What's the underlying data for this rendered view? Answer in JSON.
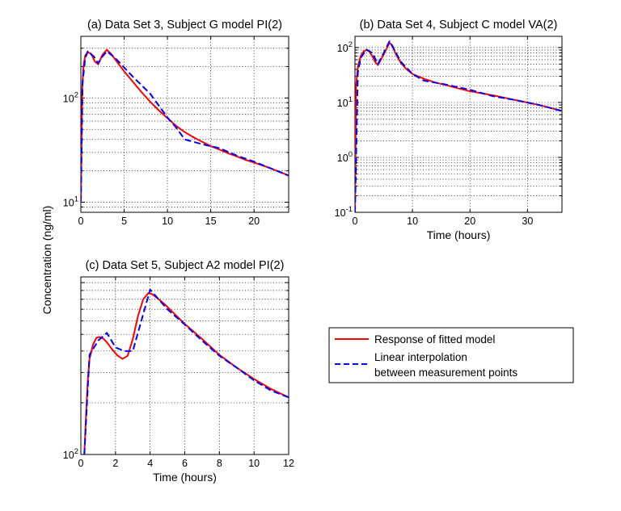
{
  "figure": {
    "ylabel": "Concentration (ng/ml)"
  },
  "legend": {
    "placement": "right",
    "entries": [
      {
        "label": "Response of fitted model",
        "color": "#ff0000",
        "style": "solid"
      },
      {
        "label": "Linear interpolation",
        "label2": "between measurement points",
        "color": "#0000ff",
        "style": "dashed"
      }
    ]
  },
  "chart_data": [
    {
      "type": "line",
      "title": "(a) Data Set 3, Subject G model PI(2)",
      "xlabel": "",
      "ylabel": "",
      "xlim": [
        0,
        24
      ],
      "ylim": [
        8,
        390
      ],
      "yscale": "log",
      "grid": true,
      "xticks": [
        0,
        5,
        10,
        15,
        20
      ],
      "yticks": [
        {
          "v": 10,
          "mant": "10",
          "exp": "1"
        },
        {
          "v": 100,
          "mant": "10",
          "exp": "2"
        }
      ],
      "series": [
        {
          "name": "Response of fitted model",
          "color": "#ff0000",
          "x": [
            0,
            0.15,
            0.3,
            0.5,
            0.8,
            1.2,
            1.6,
            2.0,
            2.5,
            3.0,
            3.5,
            4.0,
            5.0,
            6.0,
            7.0,
            8.0,
            9.0,
            10.0,
            11.0,
            12.0,
            13.0,
            14.0,
            15.0,
            16.0,
            17.0,
            18.0,
            19.0,
            20.0,
            21.0,
            22.0,
            23.0,
            24.0
          ],
          "y": [
            10,
            120,
            200,
            255,
            275,
            265,
            225,
            210,
            260,
            290,
            265,
            232,
            180,
            143,
            114,
            92,
            76,
            64,
            54,
            47,
            42,
            38,
            34.5,
            32,
            29.5,
            27.5,
            25.5,
            24,
            22.5,
            21,
            19.5,
            18
          ]
        },
        {
          "name": "Linear interpolation between measurement points",
          "color": "#0000ff",
          "x": [
            0,
            0.2,
            0.5,
            0.8,
            1.0,
            1.5,
            2.0,
            2.5,
            3.0,
            4.0,
            6.0,
            8.0,
            10.0,
            11.0,
            12.0,
            14.0,
            16.0,
            18.0,
            20.0,
            22.0,
            24.0
          ],
          "y": [
            10,
            140,
            240,
            280,
            270,
            250,
            215,
            250,
            280,
            240,
            160,
            110,
            65,
            52,
            40,
            36,
            33,
            28,
            24.5,
            21,
            18
          ]
        }
      ]
    },
    {
      "type": "line",
      "title": "(b) Data Set 4, Subject C model VA(2)",
      "xlabel": "Time (hours)",
      "ylabel": "",
      "xlim": [
        0,
        36
      ],
      "ylim": [
        0.1,
        160
      ],
      "yscale": "log",
      "grid": true,
      "xticks": [
        0,
        10,
        20,
        30
      ],
      "yticks": [
        {
          "v": 0.1,
          "mant": "10",
          "exp": "-1"
        },
        {
          "v": 1,
          "mant": "10",
          "exp": "0"
        },
        {
          "v": 10,
          "mant": "10",
          "exp": "1"
        },
        {
          "v": 100,
          "mant": "10",
          "exp": "2"
        }
      ],
      "series": [
        {
          "name": "Response of fitted model",
          "color": "#ff0000",
          "x": [
            0,
            0.2,
            0.5,
            1.0,
            1.5,
            2.0,
            2.5,
            3.0,
            3.5,
            4.0,
            5.0,
            6.0,
            6.5,
            7.0,
            8.0,
            9.0,
            10.0,
            12.0,
            14.0,
            16.0,
            18.0,
            20.0,
            24.0,
            28.0,
            32.0,
            36.0
          ],
          "y": [
            0.1,
            20,
            45,
            70,
            85,
            90,
            85,
            70,
            55,
            48,
            75,
            122,
            110,
            80,
            52,
            40,
            33,
            27,
            23,
            20.5,
            18,
            16,
            13.5,
            11,
            9,
            7
          ]
        },
        {
          "name": "Linear interpolation between measurement points",
          "color": "#0000ff",
          "x": [
            0,
            0.5,
            1.0,
            2.0,
            3.0,
            4.0,
            5.0,
            6.0,
            7.0,
            8.0,
            10.0,
            12.0,
            16.0,
            20.0,
            24.0,
            28.0,
            32.0,
            36.0
          ],
          "y": [
            0.1,
            35,
            65,
            92,
            80,
            50,
            80,
            130,
            85,
            55,
            33,
            25,
            21,
            17,
            13,
            11,
            9,
            7
          ]
        }
      ]
    },
    {
      "type": "line",
      "title": "(c) Data Set 5, Subject A2 model PI(2)",
      "xlabel": "Time (hours)",
      "ylabel": "",
      "xlim": [
        0,
        12
      ],
      "ylim": [
        100,
        1080
      ],
      "yscale": "log",
      "grid": true,
      "xticks": [
        0,
        2,
        4,
        6,
        8,
        10,
        12
      ],
      "yticks": [
        {
          "v": 100,
          "mant": "10",
          "exp": "2"
        }
      ],
      "series": [
        {
          "name": "Response of fitted model",
          "color": "#ff0000",
          "x": [
            0.2,
            0.3,
            0.4,
            0.5,
            0.7,
            0.9,
            1.1,
            1.3,
            1.5,
            1.8,
            2.1,
            2.4,
            2.7,
            3.0,
            3.3,
            3.6,
            3.9,
            4.1,
            4.4,
            4.8,
            5.2,
            6.0,
            7.0,
            8.0,
            9.0,
            10.0,
            11.0,
            12.0
          ],
          "y": [
            100,
            170,
            270,
            360,
            435,
            478,
            483,
            472,
            450,
            410,
            378,
            360,
            375,
            470,
            640,
            800,
            870,
            860,
            815,
            755,
            690,
            575,
            470,
            380,
            320,
            275,
            240,
            215
          ]
        },
        {
          "name": "Linear interpolation between measurement points",
          "color": "#0000ff",
          "x": [
            0.2,
            0.5,
            1.0,
            1.5,
            2.0,
            2.5,
            3.0,
            4.0,
            5.0,
            6.0,
            7.0,
            8.0,
            9.0,
            10.0,
            11.0,
            12.0
          ],
          "y": [
            100,
            380,
            460,
            510,
            420,
            400,
            400,
            910,
            700,
            570,
            460,
            375,
            320,
            270,
            235,
            215
          ]
        }
      ]
    }
  ]
}
